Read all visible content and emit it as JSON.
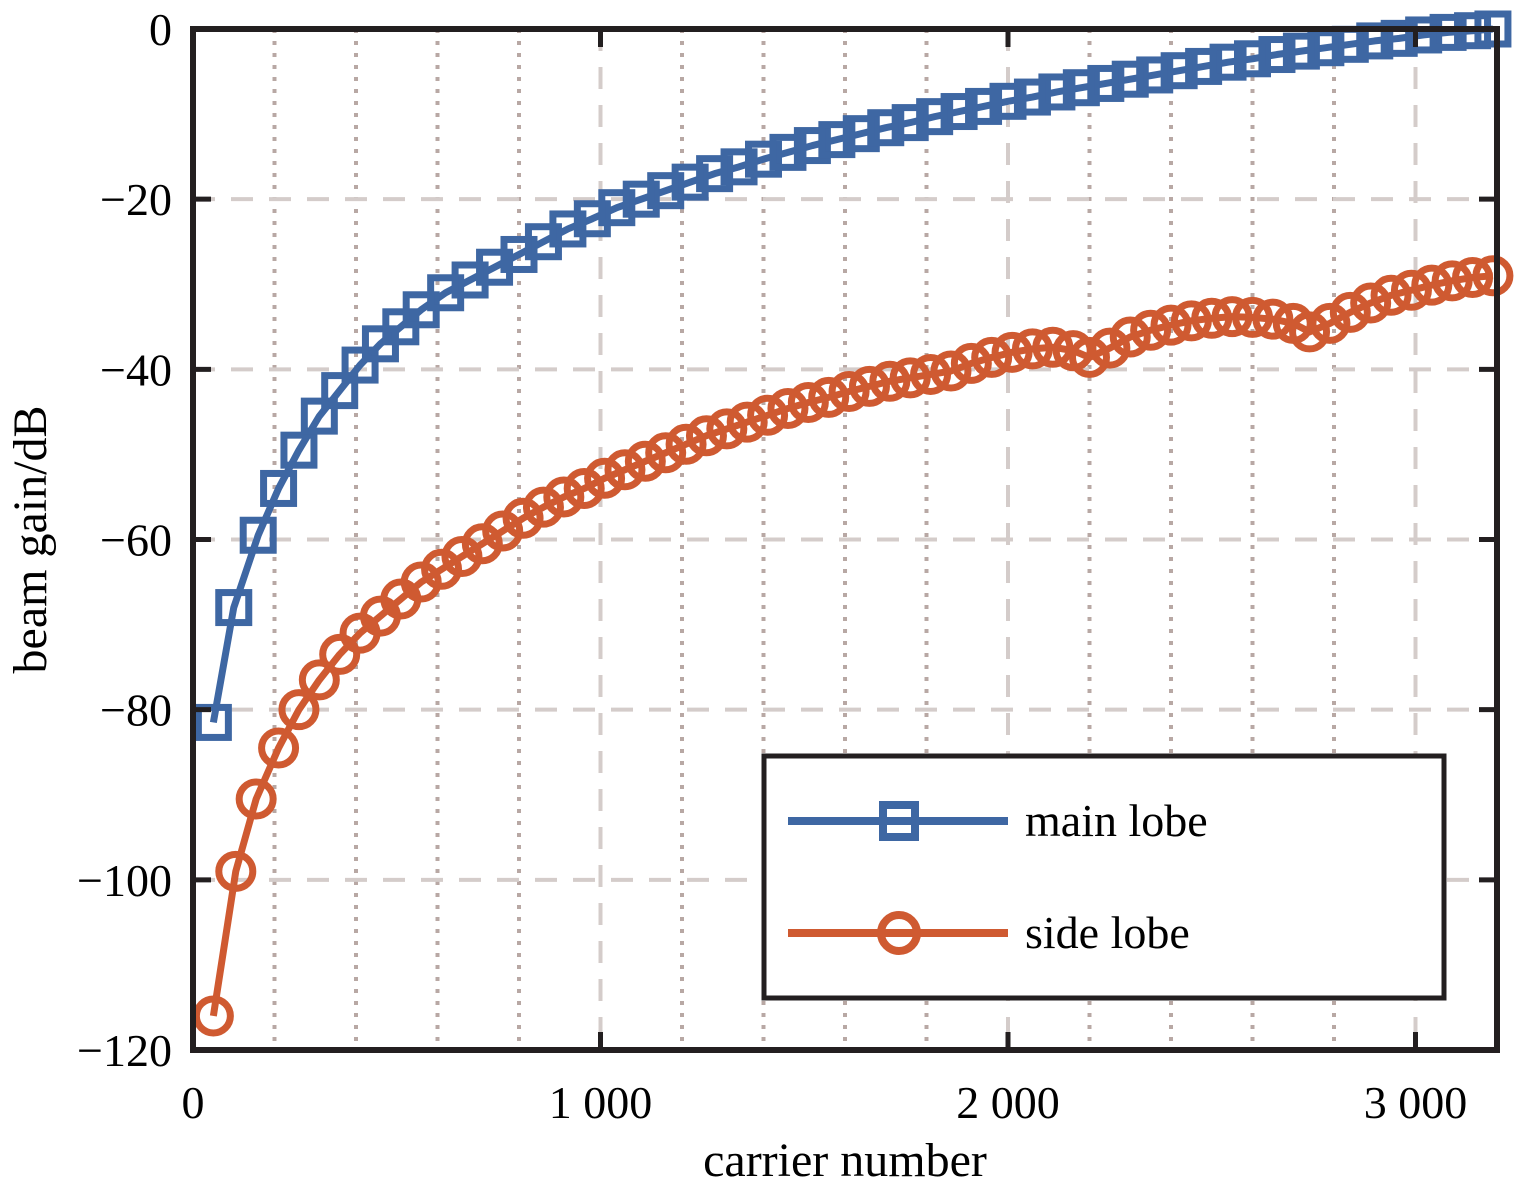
{
  "chart_data": {
    "type": "line",
    "title": "",
    "xlabel": "carrier number",
    "ylabel": "beam gain/dB",
    "xlim": [
      0,
      3200
    ],
    "ylim": [
      -120,
      0
    ],
    "xticks": [
      0,
      1000,
      2000,
      3000
    ],
    "xtick_labels": [
      "0",
      "1 000",
      "2 000",
      "3 000"
    ],
    "yticks": [
      -120,
      -100,
      -80,
      -60,
      -40,
      -20,
      0
    ],
    "ytick_labels": [
      "-120",
      "-100",
      "-80",
      "-60",
      "-40",
      "-20",
      "0"
    ],
    "grid": "major dashed, minor dotted",
    "minor_xtick_step": 200,
    "legend_position": "bottom-right",
    "series": [
      {
        "name": "main lobe",
        "color": "#3e67a3",
        "marker": "square",
        "points": [
          [
            50,
            -81.5
          ],
          [
            100,
            -68
          ],
          [
            160,
            -59.5
          ],
          [
            210,
            -54
          ],
          [
            260,
            -49.5
          ],
          [
            310,
            -45.5
          ],
          [
            360,
            -42.5
          ],
          [
            410,
            -39.5
          ],
          [
            460,
            -37
          ],
          [
            510,
            -35
          ],
          [
            560,
            -33
          ],
          [
            620,
            -31
          ],
          [
            680,
            -29.5
          ],
          [
            740,
            -28
          ],
          [
            800,
            -26.5
          ],
          [
            860,
            -25
          ],
          [
            920,
            -23.5
          ],
          [
            980,
            -22.3
          ],
          [
            1040,
            -21
          ],
          [
            1100,
            -20
          ],
          [
            1160,
            -19
          ],
          [
            1220,
            -18
          ],
          [
            1280,
            -17
          ],
          [
            1340,
            -16.2
          ],
          [
            1400,
            -15.3
          ],
          [
            1460,
            -14.5
          ],
          [
            1520,
            -13.7
          ],
          [
            1580,
            -13
          ],
          [
            1640,
            -12.3
          ],
          [
            1700,
            -11.6
          ],
          [
            1760,
            -11
          ],
          [
            1820,
            -10.3
          ],
          [
            1880,
            -9.7
          ],
          [
            1940,
            -9.1
          ],
          [
            2000,
            -8.5
          ],
          [
            2060,
            -8
          ],
          [
            2120,
            -7.4
          ],
          [
            2180,
            -6.9
          ],
          [
            2240,
            -6.4
          ],
          [
            2300,
            -5.9
          ],
          [
            2360,
            -5.4
          ],
          [
            2420,
            -4.9
          ],
          [
            2480,
            -4.4
          ],
          [
            2540,
            -3.9
          ],
          [
            2600,
            -3.5
          ],
          [
            2660,
            -3
          ],
          [
            2720,
            -2.6
          ],
          [
            2780,
            -2.2
          ],
          [
            2840,
            -1.8
          ],
          [
            2900,
            -1.4
          ],
          [
            2960,
            -1.1
          ],
          [
            3020,
            -0.7
          ],
          [
            3080,
            -0.4
          ],
          [
            3140,
            -0.2
          ],
          [
            3190,
            0
          ]
        ]
      },
      {
        "name": "side lobe",
        "color": "#cf5a31",
        "marker": "circle",
        "points": [
          [
            50,
            -116
          ],
          [
            105,
            -99
          ],
          [
            155,
            -90.5
          ],
          [
            210,
            -84.5
          ],
          [
            260,
            -80
          ],
          [
            310,
            -76.5
          ],
          [
            360,
            -73.5
          ],
          [
            410,
            -71
          ],
          [
            460,
            -69
          ],
          [
            510,
            -67
          ],
          [
            560,
            -65
          ],
          [
            610,
            -63.5
          ],
          [
            660,
            -62
          ],
          [
            710,
            -60.5
          ],
          [
            760,
            -59
          ],
          [
            810,
            -57.5
          ],
          [
            860,
            -56.2
          ],
          [
            910,
            -55
          ],
          [
            960,
            -54
          ],
          [
            1010,
            -52.8
          ],
          [
            1060,
            -51.8
          ],
          [
            1110,
            -50.8
          ],
          [
            1160,
            -49.8
          ],
          [
            1210,
            -48.8
          ],
          [
            1260,
            -47.8
          ],
          [
            1310,
            -47
          ],
          [
            1360,
            -46.2
          ],
          [
            1410,
            -45.4
          ],
          [
            1460,
            -44.6
          ],
          [
            1510,
            -43.9
          ],
          [
            1560,
            -43.3
          ],
          [
            1610,
            -42.6
          ],
          [
            1660,
            -42
          ],
          [
            1710,
            -41.4
          ],
          [
            1760,
            -41
          ],
          [
            1810,
            -40.6
          ],
          [
            1860,
            -40.2
          ],
          [
            1910,
            -39.3
          ],
          [
            1960,
            -38.6
          ],
          [
            2010,
            -38
          ],
          [
            2060,
            -37.6
          ],
          [
            2110,
            -37.4
          ],
          [
            2160,
            -37.8
          ],
          [
            2200,
            -38.6
          ],
          [
            2250,
            -37.5
          ],
          [
            2300,
            -36.2
          ],
          [
            2350,
            -35.4
          ],
          [
            2400,
            -34.8
          ],
          [
            2450,
            -34.3
          ],
          [
            2500,
            -34
          ],
          [
            2550,
            -33.8
          ],
          [
            2600,
            -33.9
          ],
          [
            2650,
            -34.1
          ],
          [
            2700,
            -34.6
          ],
          [
            2740,
            -35.6
          ],
          [
            2790,
            -34.6
          ],
          [
            2840,
            -33.3
          ],
          [
            2890,
            -32.2
          ],
          [
            2940,
            -31.3
          ],
          [
            2990,
            -30.7
          ],
          [
            3040,
            -30.1
          ],
          [
            3090,
            -29.6
          ],
          [
            3140,
            -29.2
          ],
          [
            3190,
            -29
          ]
        ]
      }
    ]
  }
}
